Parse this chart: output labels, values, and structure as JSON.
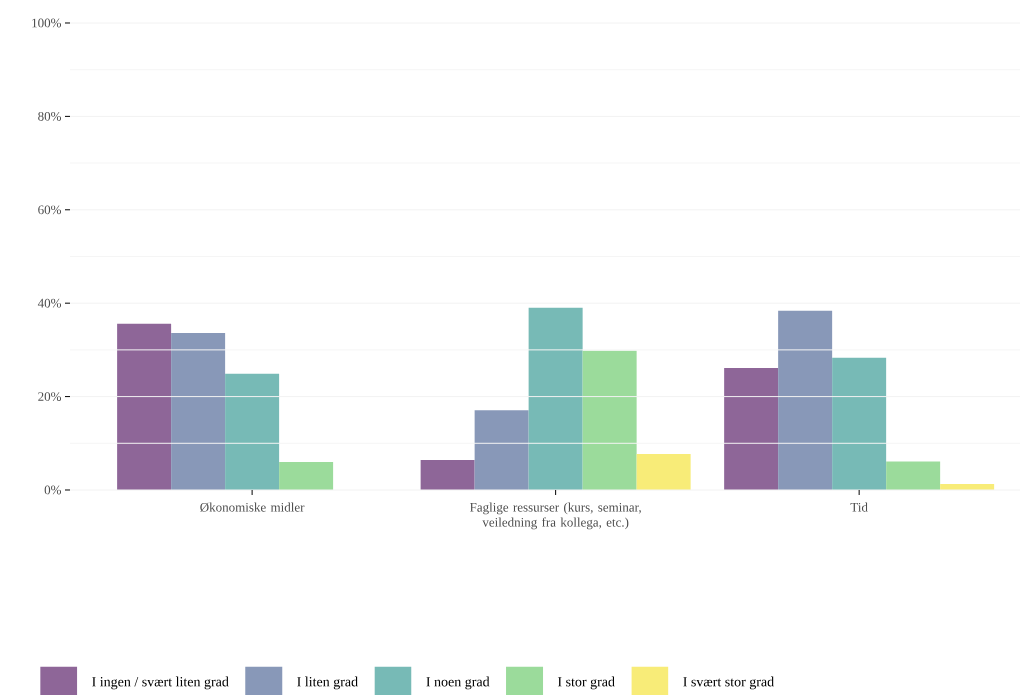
{
  "chart_data": {
    "type": "bar",
    "categories": [
      "Økonomiske midler",
      "Faglige ressurser (kurs, seminar, veiledning fra kollega, etc.)",
      "Tid"
    ],
    "series": [
      {
        "name": "I ingen / svært liten grad",
        "color": "#8e6698",
        "values": [
          35.6,
          6.4,
          26.1
        ]
      },
      {
        "name": "I liten grad",
        "color": "#8898b8",
        "values": [
          33.6,
          17.1,
          38.4
        ]
      },
      {
        "name": "I noen grad",
        "color": "#77bab6",
        "values": [
          24.9,
          39.0,
          28.3
        ]
      },
      {
        "name": "I stor grad",
        "color": "#9bdb9b",
        "values": [
          6.0,
          29.8,
          6.1
        ]
      },
      {
        "name": "I svært stor grad",
        "color": "#f8ec78",
        "values": [
          0,
          7.7,
          1.3
        ]
      }
    ],
    "ylim": [
      0,
      100
    ],
    "yticks": [
      {
        "value": 0,
        "label": "0%"
      },
      {
        "value": 20,
        "label": "20%"
      },
      {
        "value": 40,
        "label": "40%"
      },
      {
        "value": 60,
        "label": "60%"
      },
      {
        "value": 80,
        "label": "80%"
      },
      {
        "value": 100,
        "label": "100%"
      }
    ],
    "grid": "y",
    "legend": "bottom"
  }
}
